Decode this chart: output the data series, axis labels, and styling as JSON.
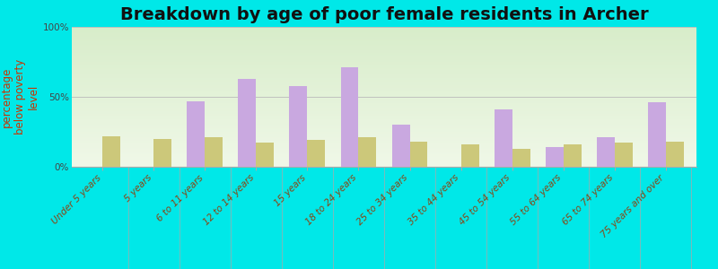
{
  "title": "Breakdown by age of poor female residents in Archer",
  "ylabel": "percentage\nbelow poverty\nlevel",
  "categories": [
    "Under 5 years",
    "5 years",
    "6 to 11 years",
    "12 to 14 years",
    "15 years",
    "18 to 24 years",
    "25 to 34 years",
    "35 to 44 years",
    "45 to 54 years",
    "55 to 64 years",
    "65 to 74 years",
    "75 years and over"
  ],
  "archer_values": [
    0,
    0,
    47,
    63,
    58,
    71,
    30,
    0,
    41,
    14,
    21,
    46
  ],
  "florida_values": [
    22,
    20,
    21,
    17,
    19,
    21,
    18,
    16,
    13,
    16,
    17,
    18
  ],
  "archer_color": "#c9a8e0",
  "florida_color": "#ccc87a",
  "bar_width": 0.35,
  "ylim": [
    0,
    100
  ],
  "yticks": [
    0,
    50,
    100
  ],
  "ytick_labels": [
    "0%",
    "50%",
    "100%"
  ],
  "outer_bg": "#00e8e8",
  "title_fontsize": 14,
  "axis_label_fontsize": 8.5,
  "tick_fontsize": 7.5,
  "legend_fontsize": 10,
  "ylabel_color": "#cc3300",
  "xtick_color": "#8b4513",
  "bg_grad_bottom": "#d8edca",
  "bg_grad_top": "#f0f8e8"
}
